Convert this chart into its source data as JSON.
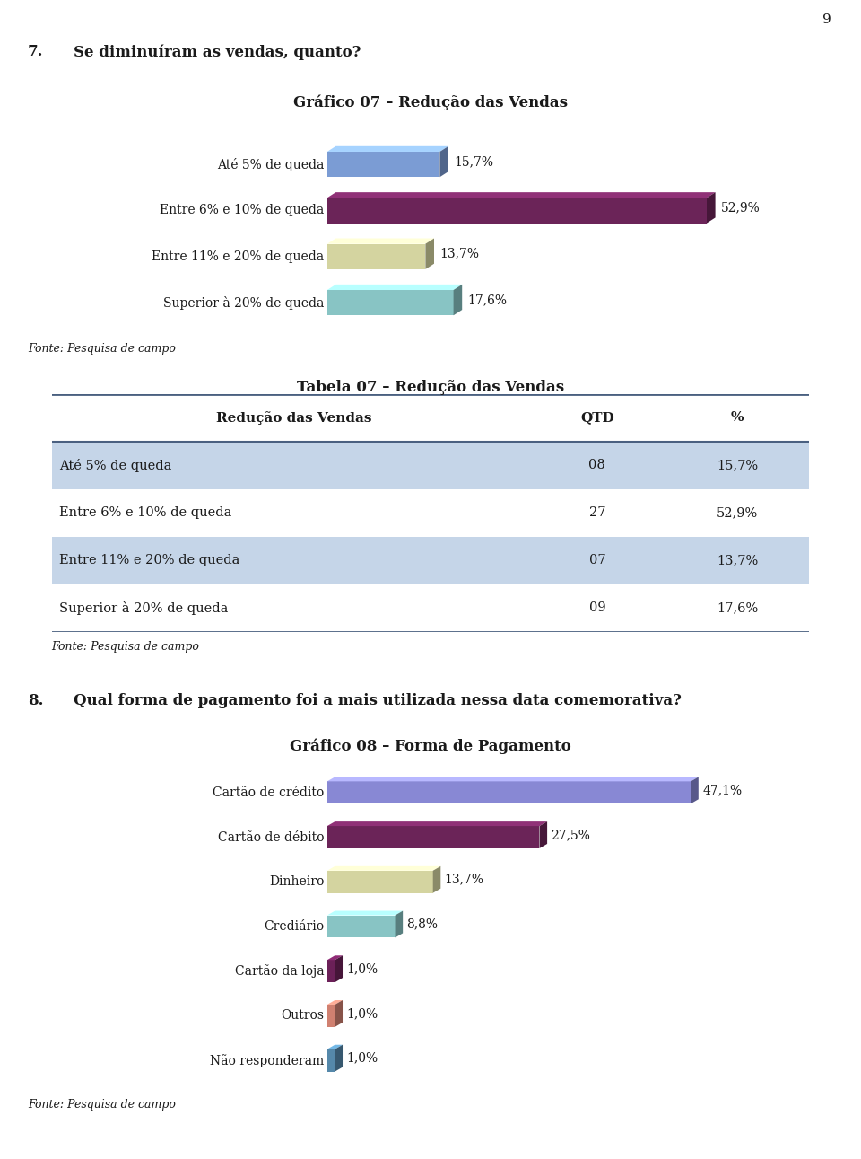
{
  "page_number": "9",
  "question7_num": "7.",
  "question7_text": "Se diminuíram as vendas, quanto?",
  "chart1_title": "Gráfico 07 – Redução das Vendas",
  "chart1_categories": [
    "Até 5% de queda",
    "Entre 6% e 10% de queda",
    "Entre 11% e 20% de queda",
    "Superior à 20% de queda"
  ],
  "chart1_values": [
    15.7,
    52.9,
    13.7,
    17.6
  ],
  "chart1_labels": [
    "15,7%",
    "52,9%",
    "13,7%",
    "17,6%"
  ],
  "chart1_colors": [
    "#7b9cd4",
    "#6b2458",
    "#d4d4a0",
    "#88c4c4"
  ],
  "fonte1": "Fonte: Pesquisa de campo",
  "table_title": "Tabela 07 – Redução das Vendas",
  "table_col_headers": [
    "Redução das Vendas",
    "QTD",
    "%"
  ],
  "table_rows": [
    [
      "Até 5% de queda",
      "08",
      "15,7%"
    ],
    [
      "Entre 6% e 10% de queda",
      "27",
      "52,9%"
    ],
    [
      "Entre 11% e 20% de queda",
      "07",
      "13,7%"
    ],
    [
      "Superior à 20% de queda",
      "09",
      "17,6%"
    ]
  ],
  "table_row_colors": [
    "#c5d5e8",
    "#ffffff",
    "#c5d5e8",
    "#ffffff"
  ],
  "fonte2": "Fonte: Pesquisa de campo",
  "question8_num": "8.",
  "question8_text": "Qual forma de pagamento foi a mais utilizada nessa data comemorativa?",
  "chart2_title": "Gráfico 08 – Forma de Pagamento",
  "chart2_categories": [
    "Cartão de crédito",
    "Cartão de débito",
    "Dinheiro",
    "Crediário",
    "Cartão da loja",
    "Outros",
    "Não responderam"
  ],
  "chart2_values": [
    47.1,
    27.5,
    13.7,
    8.8,
    1.0,
    1.0,
    1.0
  ],
  "chart2_labels": [
    "47,1%",
    "27,5%",
    "13,7%",
    "8,8%",
    "1,0%",
    "1,0%",
    "1,0%"
  ],
  "chart2_colors": [
    "#8888d4",
    "#6b2458",
    "#d4d4a0",
    "#88c4c4",
    "#6b2058",
    "#d08070",
    "#5588aa"
  ],
  "fonte3": "Fonte: Pesquisa de campo",
  "bg_color": "#ffffff",
  "text_color": "#1a1a1a",
  "border_color": "#4a6080"
}
